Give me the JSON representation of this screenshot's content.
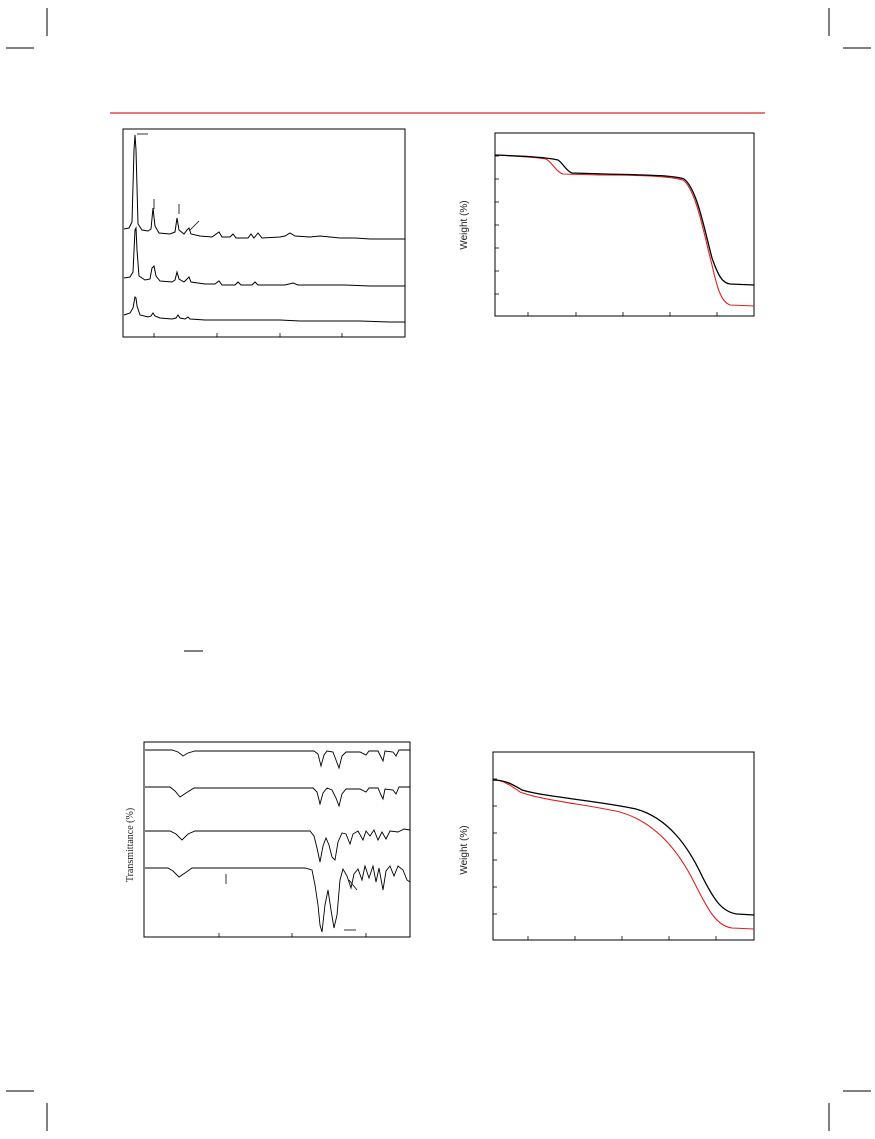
{
  "header": {
    "rule_color": "#e04b4b"
  },
  "colors": {
    "black_series": "#000000",
    "red_series": "#e02020",
    "frame": "#000000"
  },
  "figures": {
    "xrd": {
      "chart_data": {
        "type": "line",
        "title": "",
        "xlabel": "",
        "ylabel": "",
        "series": [
          {
            "name": "",
            "values": []
          },
          {
            "name": "",
            "values": []
          },
          {
            "name": "",
            "values": []
          }
        ]
      }
    },
    "tga_top": {
      "ylabel": "Weight (%)",
      "chart_data": {
        "type": "line",
        "title": "",
        "xlabel": "",
        "ylabel": "Weight (%)",
        "series": [
          {
            "name": "",
            "color": "#000000",
            "values": []
          },
          {
            "name": "",
            "color": "#e02020",
            "values": []
          }
        ]
      }
    },
    "ftir": {
      "ylabel": "Transmittance (%)",
      "chart_data": {
        "type": "line",
        "title": "",
        "xlabel": "",
        "ylabel": "Transmittance (%)",
        "series": [
          {
            "name": "",
            "values": []
          },
          {
            "name": "",
            "values": []
          },
          {
            "name": "",
            "values": []
          },
          {
            "name": "",
            "values": []
          }
        ]
      }
    },
    "tga_bottom": {
      "ylabel": "Weight (%)",
      "chart_data": {
        "type": "line",
        "title": "",
        "xlabel": "",
        "ylabel": "Weight (%)",
        "series": [
          {
            "name": "",
            "color": "#000000",
            "values": []
          },
          {
            "name": "",
            "color": "#e02020",
            "values": []
          }
        ]
      }
    }
  }
}
